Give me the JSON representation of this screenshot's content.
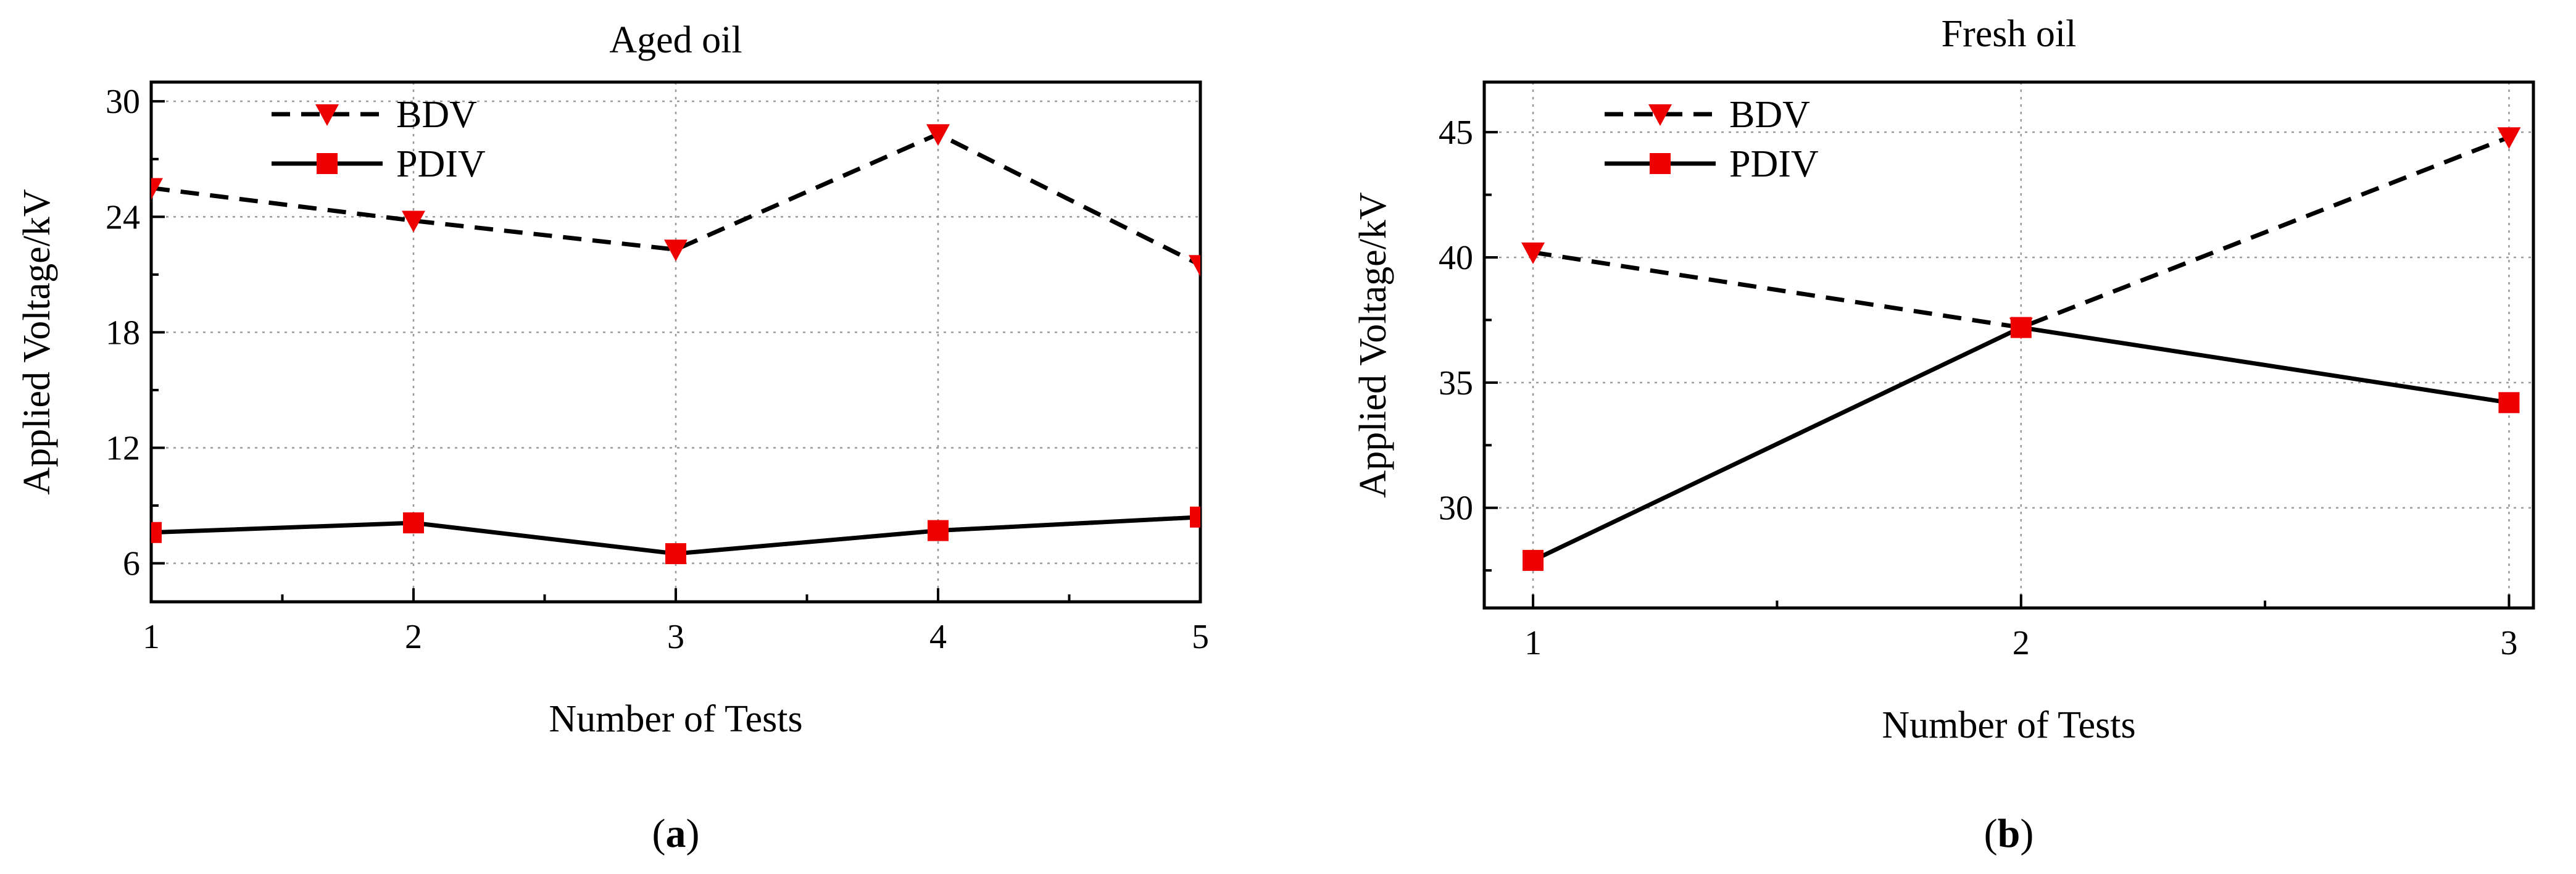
{
  "chart_data": [
    {
      "type": "line",
      "title": "Aged oil",
      "xlabel": "Number of Tests",
      "ylabel": "Applied Voltage/kV",
      "panel_label": "a",
      "x": [
        1,
        2,
        3,
        4,
        5
      ],
      "xlim": [
        1,
        5
      ],
      "ylim": [
        4,
        31
      ],
      "yticks": [
        6,
        12,
        18,
        24,
        30
      ],
      "xticks": [
        1,
        2,
        3,
        4,
        5
      ],
      "grid": true,
      "legend_position": "top-left",
      "series": [
        {
          "name": "BDV",
          "values": [
            25.5,
            23.8,
            22.3,
            28.3,
            21.5
          ],
          "color": "#ee0000",
          "line_style": "dashed",
          "marker": "triangle-down"
        },
        {
          "name": "PDIV",
          "values": [
            7.6,
            8.1,
            6.5,
            7.7,
            8.4
          ],
          "color": "#ee0000",
          "line_style": "solid",
          "marker": "square"
        }
      ]
    },
    {
      "type": "line",
      "title": "Fresh oil",
      "xlabel": "Number of Tests",
      "ylabel": "Applied Voltage/kV",
      "panel_label": "b",
      "x": [
        1,
        2,
        3
      ],
      "xlim": [
        0.9,
        3.05
      ],
      "ylim": [
        26,
        47
      ],
      "yticks": [
        30,
        35,
        40,
        45
      ],
      "xticks": [
        1,
        2,
        3
      ],
      "grid": true,
      "legend_position": "top-left",
      "series": [
        {
          "name": "BDV",
          "values": [
            40.2,
            37.2,
            44.8
          ],
          "color": "#ee0000",
          "line_style": "dashed",
          "marker": "triangle-down"
        },
        {
          "name": "PDIV",
          "values": [
            27.9,
            37.2,
            34.2
          ],
          "color": "#ee0000",
          "line_style": "solid",
          "marker": "square"
        }
      ]
    }
  ]
}
